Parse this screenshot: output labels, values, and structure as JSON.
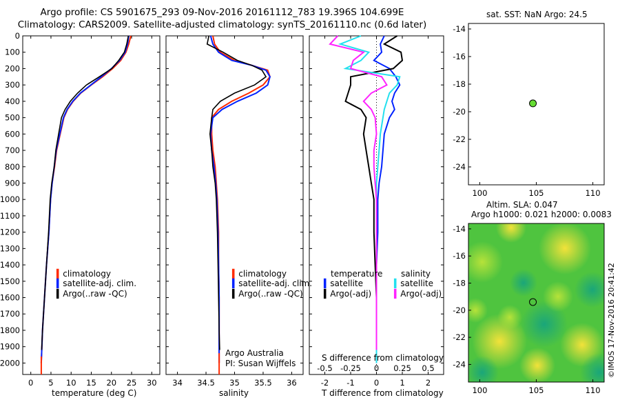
{
  "header": {
    "title_line1": "Argo profile: CS 5901675_293 09-Nov-2016 20161112_783 19.396S 104.699E",
    "title_line2": "Climatology: CARS2009. Satellite-adjusted climatology: synTS_20161110.nc (0.6d later)"
  },
  "timestamp": "©IMOS 17-Nov-2016 20:41:42",
  "colors": {
    "climatology": "#ff2a00",
    "satellite": "#0022ff",
    "argo": "#000000",
    "sat_diff_s": "#22e0ee",
    "argo_diff_s": "#ff22ff",
    "marker": "#66dd33"
  },
  "chart_data": [
    {
      "type": "line",
      "xlabel": "temperature (deg C)",
      "ylabel": "",
      "xlim": [
        -2,
        32
      ],
      "ylim": [
        2070,
        0
      ],
      "xticks": [
        0,
        5,
        10,
        15,
        20,
        25,
        30
      ],
      "yticks": [
        0,
        100,
        200,
        300,
        400,
        500,
        600,
        700,
        800,
        900,
        1000,
        1100,
        1200,
        1300,
        1400,
        1500,
        1600,
        1700,
        1800,
        1900,
        2000
      ],
      "legend": [
        "climatology",
        "satellite-adj. clim.",
        "Argo(..raw -QC)"
      ],
      "series": [
        {
          "name": "climatology",
          "x": [
            24.8,
            24.3,
            23.6,
            22.3,
            20.3,
            17.8,
            15.0,
            12.4,
            10.5,
            9.1,
            8.2,
            7.3,
            6.4,
            5.9,
            5.3,
            4.9,
            4.5,
            3.9,
            3.4,
            2.9,
            2.6
          ],
          "y": [
            0,
            50,
            100,
            150,
            200,
            250,
            300,
            350,
            400,
            450,
            500,
            600,
            700,
            800,
            900,
            1000,
            1200,
            1400,
            1600,
            1800,
            2000
          ]
        },
        {
          "name": "satellite-adj. clim.",
          "x": [
            24.3,
            24.0,
            23.4,
            22.0,
            20.0,
            17.5,
            14.9,
            12.3,
            10.4,
            9.0,
            8.1,
            7.2,
            6.3,
            5.8,
            5.3,
            4.9,
            4.5,
            3.9,
            3.4,
            2.9,
            2.6
          ],
          "y": [
            0,
            50,
            100,
            150,
            200,
            250,
            300,
            350,
            400,
            450,
            500,
            600,
            700,
            800,
            900,
            1000,
            1200,
            1400,
            1600,
            1800,
            2000
          ]
        },
        {
          "name": "Argo(..raw -QC)",
          "x": [
            24.2,
            23.8,
            23.2,
            21.8,
            20.1,
            17.0,
            13.8,
            11.6,
            9.8,
            8.5,
            7.6,
            6.9,
            6.2,
            5.8,
            5.2,
            4.8,
            4.4,
            3.9,
            3.4,
            2.9,
            2.7
          ],
          "y": [
            0,
            50,
            100,
            150,
            200,
            250,
            300,
            350,
            400,
            450,
            500,
            600,
            700,
            800,
            900,
            1000,
            1200,
            1400,
            1600,
            1800,
            1920
          ]
        }
      ]
    },
    {
      "type": "line",
      "xlabel": "salinity",
      "xlim": [
        33.8,
        36.2
      ],
      "ylim": [
        2070,
        0
      ],
      "xticks": [
        34,
        34.5,
        35,
        35.5,
        36
      ],
      "legend": [
        "climatology",
        "satellite-adj. clim.",
        "Argo(..raw -QC)"
      ],
      "annotation": [
        "Argo Australia",
        "PI: Susan Wijffels"
      ],
      "series": [
        {
          "name": "climatology",
          "x": [
            34.62,
            34.65,
            34.75,
            35.0,
            35.3,
            35.58,
            35.62,
            35.5,
            35.25,
            34.95,
            34.72,
            34.6,
            34.6,
            34.62,
            34.66,
            34.68,
            34.7,
            34.72,
            34.72,
            34.73,
            34.73,
            34.73
          ],
          "y": [
            0,
            50,
            100,
            150,
            180,
            210,
            250,
            300,
            350,
            400,
            450,
            500,
            600,
            700,
            800,
            900,
            1000,
            1200,
            1400,
            1600,
            1800,
            2000
          ]
        },
        {
          "name": "satellite-adj. clim.",
          "x": [
            34.58,
            34.62,
            34.72,
            34.95,
            35.3,
            35.55,
            35.62,
            35.58,
            35.38,
            35.05,
            34.78,
            34.62,
            34.58,
            34.6,
            34.64,
            34.67,
            34.69,
            34.71,
            34.72,
            34.73,
            34.73,
            34.73
          ],
          "y": [
            0,
            50,
            100,
            150,
            180,
            210,
            250,
            300,
            350,
            400,
            450,
            500,
            600,
            700,
            800,
            900,
            1000,
            1200,
            1400,
            1600,
            1800,
            2000
          ]
        },
        {
          "name": "Argo(..raw -QC)",
          "x": [
            34.55,
            34.52,
            34.8,
            35.05,
            35.3,
            35.48,
            35.55,
            35.35,
            35.0,
            34.75,
            34.62,
            34.6,
            34.57,
            34.6,
            34.62,
            34.66,
            34.68,
            34.7,
            34.71,
            34.72,
            34.73,
            34.74
          ],
          "y": [
            0,
            50,
            100,
            150,
            180,
            210,
            250,
            300,
            350,
            400,
            450,
            500,
            600,
            700,
            800,
            900,
            1000,
            1200,
            1400,
            1600,
            1800,
            1920
          ]
        }
      ]
    },
    {
      "type": "line",
      "xlabel": "T difference from climatology",
      "xlabel_top": "S difference from climatology",
      "xlim": [
        -2.6,
        2.6
      ],
      "ylim": [
        2070,
        0
      ],
      "xticks": [
        -2,
        -1,
        0,
        1,
        2
      ],
      "xticks_top": [
        "-0.5",
        "-0.25",
        "0",
        "0.25",
        "0.5"
      ],
      "legend_headers": [
        "temperature",
        "salinity"
      ],
      "legend": [
        "satellite",
        "Argo(-adj)",
        "satellite",
        "Argo(-adj)"
      ],
      "series": [
        {
          "name": "satellite",
          "x": [
            0.3,
            0.15,
            0.2,
            -0.1,
            0.5,
            0.75,
            0.9,
            0.7,
            0.6,
            0.7,
            0.5,
            0.3,
            0.25,
            0.2,
            0.1,
            0.05,
            0.05,
            0.0,
            0.0,
            0.0,
            0.0
          ],
          "y": [
            0,
            50,
            100,
            150,
            200,
            250,
            300,
            350,
            400,
            450,
            500,
            600,
            700,
            800,
            900,
            1000,
            1200,
            1400,
            1600,
            1800,
            2000
          ]
        },
        {
          "name": "Argo(-adj)",
          "x": [
            0.8,
            0.3,
            0.95,
            1.0,
            0.65,
            -1.0,
            -1.0,
            -1.1,
            -1.2,
            -0.6,
            -0.4,
            -0.5,
            -0.4,
            -0.3,
            -0.2,
            -0.1,
            -0.1,
            -0.05,
            0.0,
            0.0,
            0.0
          ],
          "y": [
            0,
            50,
            100,
            150,
            200,
            250,
            300,
            350,
            400,
            450,
            500,
            600,
            700,
            800,
            900,
            1000,
            1200,
            1400,
            1600,
            1800,
            1920
          ]
        },
        {
          "name": "satellite",
          "x": [
            -0.6,
            -1.4,
            -0.3,
            -0.6,
            -1.2,
            0.9,
            0.8,
            0.5,
            0.4,
            0.3,
            0.25,
            0.15,
            0.1,
            0.05,
            0.0,
            0.0,
            0.0,
            0.0,
            0.0,
            0.0,
            0.0
          ],
          "y": [
            0,
            50,
            100,
            150,
            200,
            250,
            300,
            350,
            400,
            450,
            500,
            600,
            700,
            800,
            900,
            1000,
            1200,
            1400,
            1600,
            1800,
            2000
          ]
        },
        {
          "name": "Argo(-adj)",
          "x": [
            -1.5,
            -1.8,
            -0.5,
            -0.9,
            -1.0,
            0.2,
            0.4,
            -0.2,
            -0.5,
            -0.2,
            -0.05,
            0.0,
            -0.1,
            -0.1,
            -0.05,
            0.0,
            0.0,
            0.0,
            0.0,
            0.0,
            0.0
          ],
          "y": [
            0,
            50,
            100,
            150,
            200,
            250,
            300,
            350,
            400,
            450,
            500,
            600,
            700,
            800,
            900,
            1000,
            1200,
            1400,
            1600,
            1800,
            1920
          ]
        }
      ]
    },
    {
      "type": "scatter",
      "title": "sat. SST: NaN Argo: 24.5",
      "xlim": [
        99,
        111
      ],
      "ylim": [
        -25.3,
        -13.6
      ],
      "xticks": [
        100,
        105,
        110
      ],
      "yticks": [
        -14,
        -16,
        -18,
        -20,
        -22,
        -24
      ],
      "points": [
        {
          "x": 104.699,
          "y": -19.396
        }
      ]
    },
    {
      "type": "heatmap",
      "title_line1": "Altim. SLA: 0.047",
      "title_line2": "Argo h1000: 0.021 h2000: 0.0083",
      "xlim": [
        99,
        111
      ],
      "ylim": [
        -25.3,
        -13.6
      ],
      "xticks": [
        100,
        105,
        110
      ],
      "yticks": [
        -14,
        -16,
        -18,
        -20,
        -22,
        -24
      ],
      "points": [
        {
          "x": 104.699,
          "y": -19.396
        }
      ]
    }
  ]
}
